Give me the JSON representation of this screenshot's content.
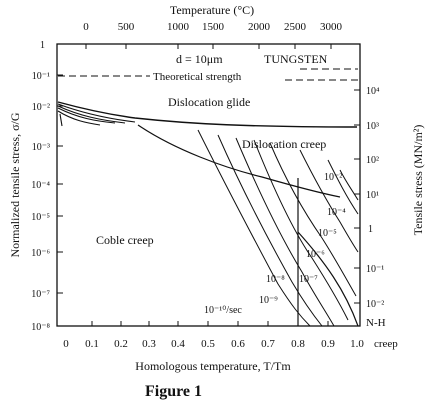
{
  "top_axis": {
    "title": "Temperature (°C)",
    "ticks": [
      "0",
      "500",
      "1000",
      "1500",
      "2000",
      "2500",
      "3000"
    ]
  },
  "bottom_axis": {
    "title": "Homologous temperature, T/Tm",
    "ticks": [
      "0",
      "0.1",
      "0.2",
      "0.3",
      "0.4",
      "0.5",
      "0.6",
      "0.7",
      "0.8",
      "0.9",
      "1.0"
    ],
    "end_label": "creep"
  },
  "left_axis": {
    "title": "Normalized tensile stress, σ/G",
    "ticks": [
      "1",
      "10⁻¹",
      "10⁻²",
      "10⁻³",
      "10⁻⁴",
      "10⁻⁵",
      "10⁻⁶",
      "10⁻⁷",
      "10⁻⁸"
    ]
  },
  "right_axis": {
    "title": "Tensile stress (MN/m²)",
    "ticks": [
      "10⁴",
      "10³",
      "10²",
      "10¹",
      "1",
      "10⁻¹",
      "10⁻²"
    ]
  },
  "labels": {
    "grain_size": "d = 10μm",
    "material": "TUNGSTEN",
    "theoretical_strength": "Theoretical strength",
    "dislocation_glide": "Dislocation glide",
    "dislocation_creep": "Dislocation creep",
    "coble_creep": "Coble creep",
    "nh": "N-H",
    "rates": [
      "10⁻²",
      "10⁻⁴",
      "10⁻⁵",
      "10⁻⁶",
      "10⁻⁷",
      "10⁻⁸",
      "10⁻⁹",
      "10⁻¹⁰/sec"
    ]
  },
  "caption": "Figure 1"
}
